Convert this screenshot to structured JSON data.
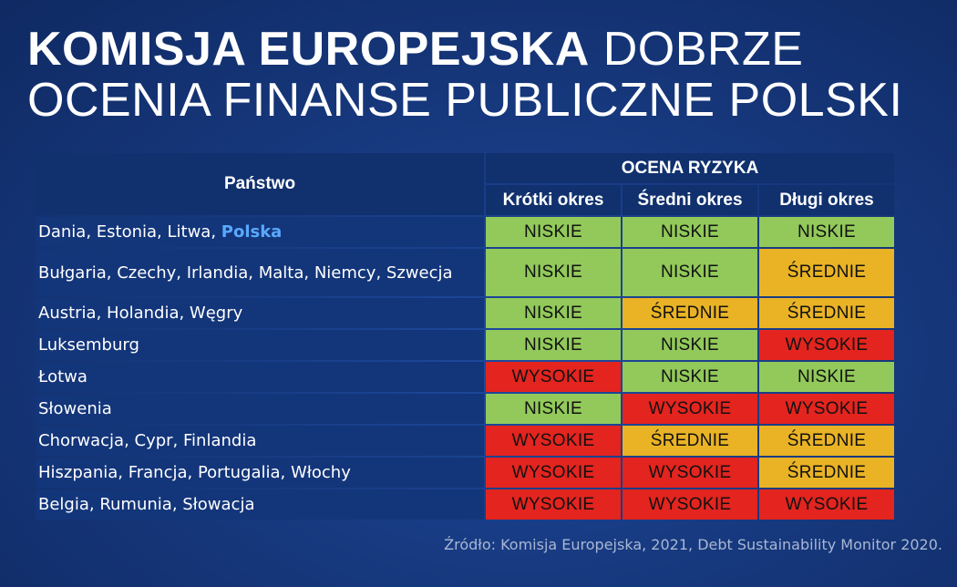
{
  "title": {
    "line1_bold": "KOMISJA EUROPEJSKA",
    "line1_light": "DOBRZE",
    "line2": "OCENIA FINANSE PUBLICZNE POLSKI"
  },
  "table": {
    "country_header": "Państwo",
    "group_header": "OCENA RYZYKA",
    "columns": [
      "Krótki okres",
      "Średni okres",
      "Długi okres"
    ],
    "rows": [
      {
        "countries": "Dania, Estonia, Litwa, ",
        "highlight": "Polska",
        "values": [
          "NISKIE",
          "NISKIE",
          "NISKIE"
        ],
        "levels": [
          "low",
          "low",
          "low"
        ]
      },
      {
        "countries": "Bułgaria, Czechy, Irlandia, Malta, Niemcy, Szwecja",
        "highlight": "",
        "values": [
          "NISKIE",
          "NISKIE",
          "ŚREDNIE"
        ],
        "levels": [
          "low",
          "low",
          "mid"
        ]
      },
      {
        "countries": "Austria, Holandia, Węgry",
        "highlight": "",
        "values": [
          "NISKIE",
          "ŚREDNIE",
          "ŚREDNIE"
        ],
        "levels": [
          "low",
          "mid",
          "mid"
        ]
      },
      {
        "countries": "Luksemburg",
        "highlight": "",
        "values": [
          "NISKIE",
          "NISKIE",
          "WYSOKIE"
        ],
        "levels": [
          "low",
          "low",
          "high"
        ]
      },
      {
        "countries": "Łotwa",
        "highlight": "",
        "values": [
          "WYSOKIE",
          "NISKIE",
          "NISKIE"
        ],
        "levels": [
          "high",
          "low",
          "low"
        ]
      },
      {
        "countries": "Słowenia",
        "highlight": "",
        "values": [
          "NISKIE",
          "WYSOKIE",
          "WYSOKIE"
        ],
        "levels": [
          "low",
          "high",
          "high"
        ]
      },
      {
        "countries": "Chorwacja, Cypr, Finlandia",
        "highlight": "",
        "values": [
          "WYSOKIE",
          "ŚREDNIE",
          "ŚREDNIE"
        ],
        "levels": [
          "high",
          "mid",
          "mid"
        ]
      },
      {
        "countries": "Hiszpania, Francja, Portugalia, Włochy",
        "highlight": "",
        "values": [
          "WYSOKIE",
          "WYSOKIE",
          "ŚREDNIE"
        ],
        "levels": [
          "high",
          "high",
          "mid"
        ]
      },
      {
        "countries": "Belgia, Rumunia, Słowacja",
        "highlight": "",
        "values": [
          "WYSOKIE",
          "WYSOKIE",
          "WYSOKIE"
        ],
        "levels": [
          "high",
          "high",
          "high"
        ]
      }
    ]
  },
  "colors": {
    "low": "#92c95a",
    "mid": "#e9b325",
    "high": "#e3241f"
  },
  "source": "Źródło: Komisja Europejska, 2021, Debt Sustainability Monitor 2020."
}
